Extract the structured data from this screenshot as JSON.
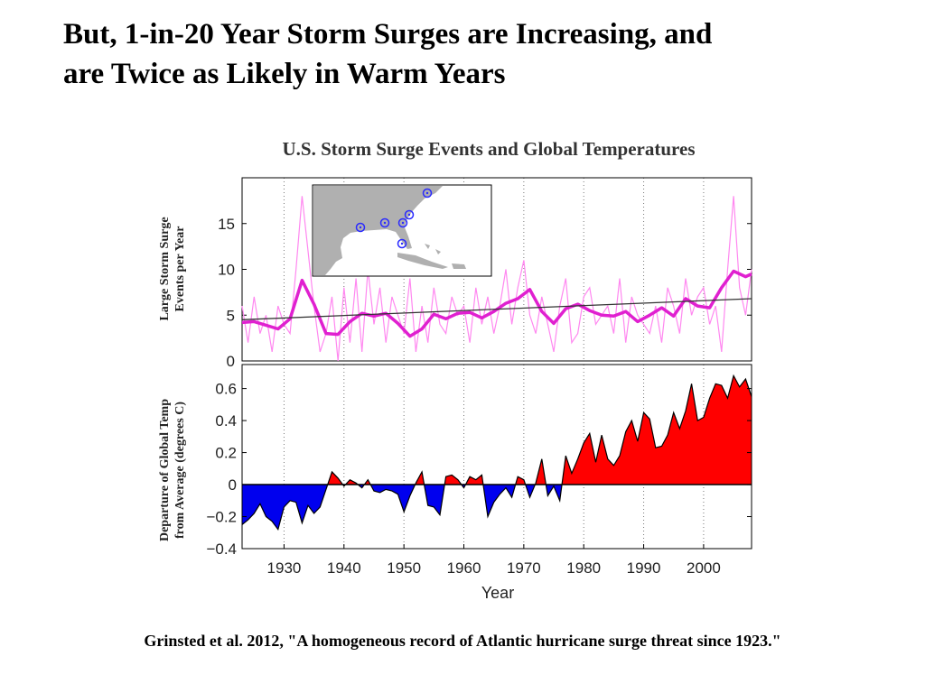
{
  "slide": {
    "title_line1": "But, 1-in-20 Year Storm Surges are Increasing, and",
    "title_line2": "are Twice as Likely in Warm Years",
    "caption": "Grinsted et al. 2012, \"A homogeneous record of Atlantic hurricane surge threat since 1923.\""
  },
  "colors": {
    "annual": "#ff88f0",
    "smoothed": "#e020d0",
    "trend": "#333333",
    "warm": "#ff0000",
    "cool": "#0000ee",
    "map_land": "#b0b0b0",
    "marker": "#2a2aff"
  },
  "chart_data": [
    {
      "id": "surge",
      "type": "line",
      "title": "U.S. Storm Surge Events and Global Temperatures",
      "ylabel_line1": "Large Storm Surge",
      "ylabel_line2": "Events per Year",
      "xlim": [
        1923,
        2008
      ],
      "ylim": [
        0,
        20
      ],
      "yticks": [
        "0",
        "5",
        "10",
        "15"
      ],
      "grid": "vertical dotted",
      "series": [
        {
          "style": "thin",
          "x": [
            1923,
            1924,
            1925,
            1926,
            1927,
            1928,
            1929,
            1930,
            1931,
            1932,
            1933,
            1934,
            1935,
            1936,
            1937,
            1938,
            1939,
            1940,
            1941,
            1942,
            1943,
            1944,
            1945,
            1946,
            1947,
            1948,
            1949,
            1950,
            1951,
            1952,
            1953,
            1954,
            1955,
            1956,
            1957,
            1958,
            1959,
            1960,
            1961,
            1962,
            1963,
            1964,
            1965,
            1966,
            1967,
            1968,
            1969,
            1970,
            1971,
            1972,
            1973,
            1974,
            1975,
            1976,
            1977,
            1978,
            1979,
            1980,
            1981,
            1982,
            1983,
            1984,
            1985,
            1986,
            1987,
            1988,
            1989,
            1990,
            1991,
            1992,
            1993,
            1994,
            1995,
            1996,
            1997,
            1998,
            1999,
            2000,
            2001,
            2002,
            2003,
            2004,
            2005,
            2006,
            2007,
            2008
          ],
          "values": [
            6,
            2,
            7,
            3,
            5,
            1,
            6,
            4,
            3,
            10,
            18,
            12,
            6,
            1,
            3,
            7,
            0,
            8,
            2,
            9,
            1,
            10,
            4,
            8,
            2,
            7,
            5,
            3,
            9,
            1,
            6,
            2,
            8,
            4,
            3,
            7,
            5,
            6,
            2,
            8,
            4,
            7,
            3,
            6,
            10,
            4,
            8,
            11,
            5,
            3,
            7,
            4,
            1,
            6,
            9,
            2,
            3,
            7,
            8,
            4,
            5,
            6,
            3,
            9,
            2,
            7,
            5,
            4,
            3,
            6,
            2,
            8,
            6,
            3,
            9,
            5,
            7,
            8,
            4,
            6,
            1,
            10,
            18,
            8,
            5,
            10
          ]
        },
        {
          "style": "thick",
          "x": [
            1923,
            1925,
            1927,
            1929,
            1931,
            1933,
            1935,
            1937,
            1939,
            1941,
            1943,
            1945,
            1947,
            1949,
            1951,
            1953,
            1955,
            1957,
            1959,
            1961,
            1963,
            1965,
            1967,
            1969,
            1971,
            1973,
            1975,
            1977,
            1979,
            1981,
            1983,
            1985,
            1987,
            1989,
            1991,
            1993,
            1995,
            1997,
            1999,
            2001,
            2003,
            2005,
            2007,
            2008
          ],
          "values": [
            4.2,
            4.3,
            3.9,
            3.5,
            4.6,
            8.8,
            6.2,
            3.0,
            2.9,
            4.3,
            5.2,
            4.9,
            5.2,
            4.1,
            2.7,
            3.5,
            5.1,
            4.6,
            5.2,
            5.3,
            4.7,
            5.4,
            6.3,
            6.8,
            7.8,
            5.4,
            4.1,
            5.7,
            6.2,
            5.5,
            5.0,
            4.9,
            5.4,
            4.3,
            5.0,
            5.8,
            4.9,
            6.8,
            6.0,
            5.8,
            8.0,
            9.8,
            9.2,
            9.5
          ]
        },
        {
          "style": "trend",
          "x": [
            1923,
            2008
          ],
          "values": [
            4.5,
            6.8
          ]
        }
      ],
      "inset": {
        "label": "map of US Gulf and Atlantic coast with tide gauge locations",
        "stations": 6
      }
    },
    {
      "id": "temperature",
      "type": "area",
      "ylabel_line1": "Departure of Global Temp",
      "ylabel_line2": "from Average (degrees C)",
      "xlabel": "Year",
      "xlim": [
        1923,
        2008
      ],
      "ylim": [
        -0.4,
        0.75
      ],
      "yticks": [
        "−0.4",
        "−0.2",
        "0",
        "0.2",
        "0.4",
        "0.6"
      ],
      "xticks": [
        "1930",
        "1940",
        "1950",
        "1960",
        "1970",
        "1980",
        "1990",
        "2000"
      ],
      "grid": "vertical dotted",
      "x": [
        1923,
        1924,
        1925,
        1926,
        1927,
        1928,
        1929,
        1930,
        1931,
        1932,
        1933,
        1934,
        1935,
        1936,
        1937,
        1938,
        1939,
        1940,
        1941,
        1942,
        1943,
        1944,
        1945,
        1946,
        1947,
        1948,
        1949,
        1950,
        1951,
        1952,
        1953,
        1954,
        1955,
        1956,
        1957,
        1958,
        1959,
        1960,
        1961,
        1962,
        1963,
        1964,
        1965,
        1966,
        1967,
        1968,
        1969,
        1970,
        1971,
        1972,
        1973,
        1974,
        1975,
        1976,
        1977,
        1978,
        1979,
        1980,
        1981,
        1982,
        1983,
        1984,
        1985,
        1986,
        1987,
        1988,
        1989,
        1990,
        1991,
        1992,
        1993,
        1994,
        1995,
        1996,
        1997,
        1998,
        1999,
        2000,
        2001,
        2002,
        2003,
        2004,
        2005,
        2006,
        2007,
        2008
      ],
      "values": [
        -0.25,
        -0.22,
        -0.18,
        -0.12,
        -0.2,
        -0.23,
        -0.28,
        -0.14,
        -0.1,
        -0.11,
        -0.24,
        -0.13,
        -0.18,
        -0.14,
        -0.03,
        0.08,
        0.04,
        -0.01,
        0.03,
        0.01,
        -0.02,
        0.03,
        -0.04,
        -0.05,
        -0.03,
        -0.04,
        -0.06,
        -0.17,
        -0.07,
        0.01,
        0.08,
        -0.13,
        -0.14,
        -0.19,
        0.05,
        0.06,
        0.03,
        -0.02,
        0.05,
        0.03,
        0.06,
        -0.2,
        -0.11,
        -0.06,
        -0.02,
        -0.08,
        0.05,
        0.03,
        -0.08,
        0.01,
        0.16,
        -0.07,
        -0.01,
        -0.1,
        0.18,
        0.07,
        0.16,
        0.26,
        0.32,
        0.14,
        0.31,
        0.16,
        0.12,
        0.18,
        0.33,
        0.4,
        0.27,
        0.45,
        0.41,
        0.23,
        0.24,
        0.31,
        0.45,
        0.35,
        0.46,
        0.63,
        0.4,
        0.42,
        0.54,
        0.63,
        0.62,
        0.54,
        0.68,
        0.61,
        0.66,
        0.55
      ],
      "positive_color": "warm",
      "negative_color": "cool"
    }
  ]
}
